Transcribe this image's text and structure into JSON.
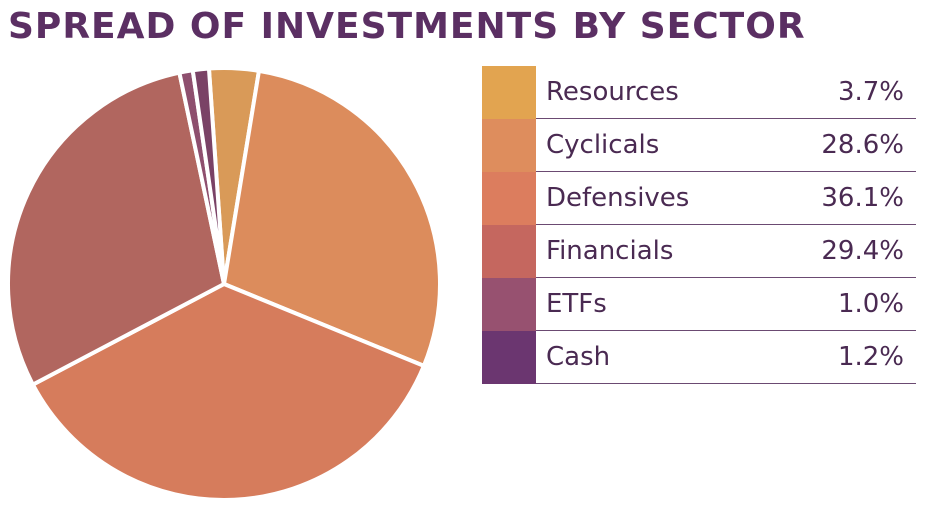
{
  "chart_data": {
    "type": "pie",
    "title": "SPREAD OF INVESTMENTS BY SECTOR",
    "categories": [
      "Resources",
      "Cyclicals",
      "Defensives",
      "Financials",
      "ETFs",
      "Cash"
    ],
    "values": [
      3.7,
      28.6,
      36.1,
      29.4,
      1.0,
      1.2
    ],
    "value_labels": [
      "3.7%",
      "28.6%",
      "36.1%",
      "29.4%",
      "1.0%",
      "1.2%"
    ],
    "legend_colors": [
      "#e2a450",
      "#de8d5d",
      "#dc7d5e",
      "#c5675f",
      "#975170",
      "#6b3670"
    ],
    "slice_colors": [
      "#d99a58",
      "#dc8c5c",
      "#d67c5c",
      "#b1665f",
      "#8e4f6e",
      "#7a4266"
    ],
    "legend_position": "right"
  }
}
